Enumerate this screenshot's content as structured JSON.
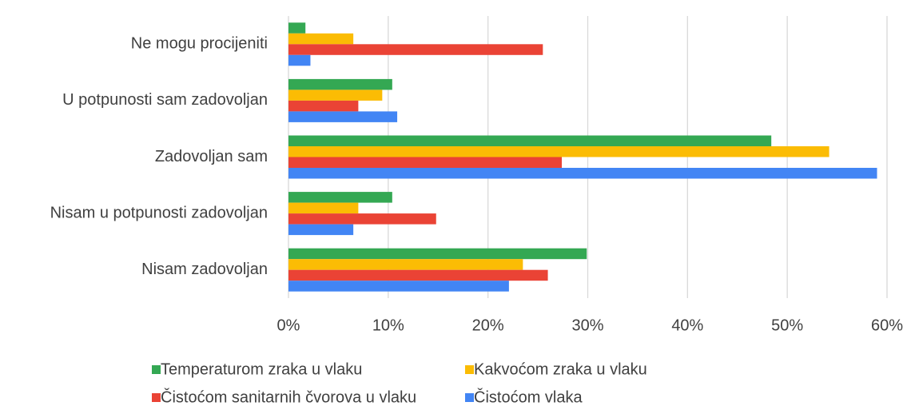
{
  "chart_data": {
    "type": "bar",
    "orientation": "horizontal",
    "categories": [
      "Ne mogu procijeniti",
      "U potpunosti sam zadovoljan",
      "Zadovoljan sam",
      "Nisam u potpunosti zadovoljan",
      "Nisam zadovoljan"
    ],
    "series": [
      {
        "name": "Temperaturom zraka u vlaku",
        "color": "#34a853",
        "values": [
          1.7,
          10.4,
          48.4,
          10.4,
          29.9
        ]
      },
      {
        "name": "Kakvoćom zraka u vlaku",
        "color": "#fbbc04",
        "values": [
          6.5,
          9.4,
          54.2,
          7.0,
          23.5
        ]
      },
      {
        "name": "Čistoćom sanitarnih čvorova u vlaku",
        "color": "#ea4335",
        "values": [
          25.5,
          7.0,
          27.4,
          14.8,
          26.0
        ]
      },
      {
        "name": "Čistoćom vlaka",
        "color": "#4285f4",
        "values": [
          2.2,
          10.9,
          59.0,
          6.5,
          22.1
        ]
      }
    ],
    "xlim": [
      0,
      60
    ],
    "xticks": [
      {
        "value": 0,
        "label": "0%"
      },
      {
        "value": 10,
        "label": "10%"
      },
      {
        "value": 20,
        "label": "20%"
      },
      {
        "value": 30,
        "label": "30%"
      },
      {
        "value": 40,
        "label": "40%"
      },
      {
        "value": 50,
        "label": "50%"
      },
      {
        "value": 60,
        "label": "60%"
      }
    ],
    "grid": true,
    "legend": "bottom"
  }
}
